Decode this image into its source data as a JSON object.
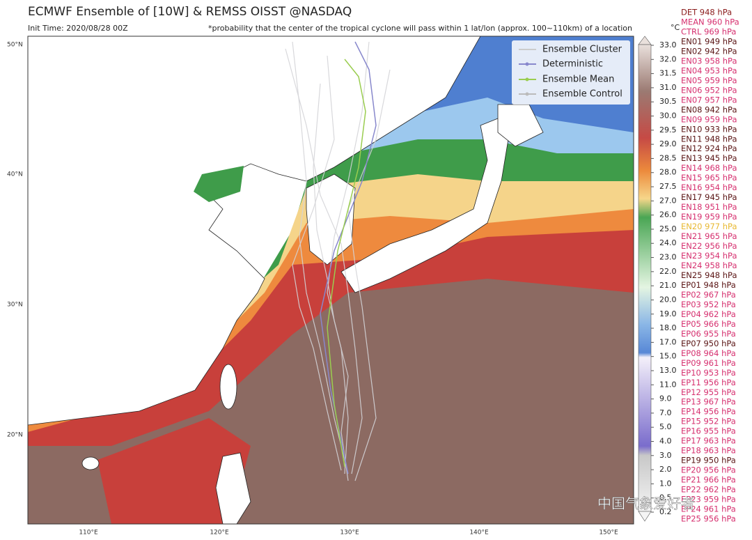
{
  "header": {
    "title": "ECMWF Ensemble of [10W] & REMSS OISST @NASDAQ",
    "init_time": "Init Time: 2020/08/28 00Z",
    "note": "*probability that the center of the tropical cyclone will pass within 1 lat/lon (approx. 100~110km) of a location"
  },
  "legend": [
    "Ensemble Cluster",
    "Deterministic",
    "Ensemble Mean",
    "Ensemble Control"
  ],
  "lat_labels": [
    "50°N",
    "40°N",
    "30°N",
    "20°N"
  ],
  "lon_labels": [
    "110°E",
    "120°E",
    "130°E",
    "140°E",
    "150°E"
  ],
  "colorbar": {
    "unit": "°C",
    "ticks": [
      "33.0",
      "32.0",
      "31.5",
      "31.0",
      "30.5",
      "30.0",
      "29.5",
      "29.0",
      "28.5",
      "28.0",
      "27.5",
      "27.0",
      "26.0",
      "25.0",
      "24.0",
      "23.0",
      "22.0",
      "21.0",
      "20.0",
      "19.0",
      "18.0",
      "17.0",
      "15.0",
      "13.0",
      "11.0",
      "9.0",
      "7.0",
      "5.0",
      "4.0",
      "3.0",
      "2.0",
      "1.0",
      "0.5",
      "0.2"
    ]
  },
  "members": [
    {
      "text": "DET 948 hPa",
      "color": "#8b1c1c"
    },
    {
      "text": "MEAN 960 hPa",
      "color": "#d6306f"
    },
    {
      "text": "CTRL 969 hPa",
      "color": "#d6306f"
    },
    {
      "text": "EN01 949 hPa",
      "color": "#5a1414"
    },
    {
      "text": "EN02 942 hPa",
      "color": "#5a1414"
    },
    {
      "text": "EN03 958 hPa",
      "color": "#d6306f"
    },
    {
      "text": "EN04 953 hPa",
      "color": "#d6306f"
    },
    {
      "text": "EN05 959 hPa",
      "color": "#d6306f"
    },
    {
      "text": "EN06 952 hPa",
      "color": "#d6306f"
    },
    {
      "text": "EN07 957 hPa",
      "color": "#d6306f"
    },
    {
      "text": "EN08 942 hPa",
      "color": "#5a1414"
    },
    {
      "text": "EN09 959 hPa",
      "color": "#d6306f"
    },
    {
      "text": "EN10 933 hPa",
      "color": "#5a1414"
    },
    {
      "text": "EN11 948 hPa",
      "color": "#5a1414"
    },
    {
      "text": "EN12 924 hPa",
      "color": "#5a1414"
    },
    {
      "text": "EN13 945 hPa",
      "color": "#5a1414"
    },
    {
      "text": "EN14 968 hPa",
      "color": "#d6306f"
    },
    {
      "text": "EN15 965 hPa",
      "color": "#d6306f"
    },
    {
      "text": "EN16 954 hPa",
      "color": "#d6306f"
    },
    {
      "text": "EN17 945 hPa",
      "color": "#5a1414"
    },
    {
      "text": "EN18 951 hPa",
      "color": "#d6306f"
    },
    {
      "text": "EN19 959 hPa",
      "color": "#d6306f"
    },
    {
      "text": "EN20 977 hPa",
      "color": "#e8b830"
    },
    {
      "text": "EN21 965 hPa",
      "color": "#d6306f"
    },
    {
      "text": "EN22 956 hPa",
      "color": "#d6306f"
    },
    {
      "text": "EN23 954 hPa",
      "color": "#d6306f"
    },
    {
      "text": "EN24 958 hPa",
      "color": "#d6306f"
    },
    {
      "text": "EN25 948 hPa",
      "color": "#5a1414"
    },
    {
      "text": "EP01 948 hPa",
      "color": "#5a1414"
    },
    {
      "text": "EP02 967 hPa",
      "color": "#d6306f"
    },
    {
      "text": "EP03 952 hPa",
      "color": "#d6306f"
    },
    {
      "text": "EP04 962 hPa",
      "color": "#d6306f"
    },
    {
      "text": "EP05 966 hPa",
      "color": "#d6306f"
    },
    {
      "text": "EP06 955 hPa",
      "color": "#d6306f"
    },
    {
      "text": "EP07 950 hPa",
      "color": "#5a1414"
    },
    {
      "text": "EP08 964 hPa",
      "color": "#d6306f"
    },
    {
      "text": "EP09 961 hPa",
      "color": "#d6306f"
    },
    {
      "text": "EP10 953 hPa",
      "color": "#d6306f"
    },
    {
      "text": "EP11 956 hPa",
      "color": "#d6306f"
    },
    {
      "text": "EP12 955 hPa",
      "color": "#d6306f"
    },
    {
      "text": "EP13 967 hPa",
      "color": "#d6306f"
    },
    {
      "text": "EP14 956 hPa",
      "color": "#d6306f"
    },
    {
      "text": "EP15 952 hPa",
      "color": "#d6306f"
    },
    {
      "text": "EP16 955 hPa",
      "color": "#d6306f"
    },
    {
      "text": "EP17 963 hPa",
      "color": "#d6306f"
    },
    {
      "text": "EP18 963 hPa",
      "color": "#d6306f"
    },
    {
      "text": "EP19 950 hPa",
      "color": "#5a1414"
    },
    {
      "text": "EP20 956 hPa",
      "color": "#d6306f"
    },
    {
      "text": "EP21 966 hPa",
      "color": "#d6306f"
    },
    {
      "text": "EP22 962 hPa",
      "color": "#d6306f"
    },
    {
      "text": "EP23 959 hPa",
      "color": "#d6306f"
    },
    {
      "text": "EP24 961 hPa",
      "color": "#d6306f"
    },
    {
      "text": "EP25 956 hPa",
      "color": "#d6306f"
    }
  ],
  "watermark": "中国气象爱好者"
}
